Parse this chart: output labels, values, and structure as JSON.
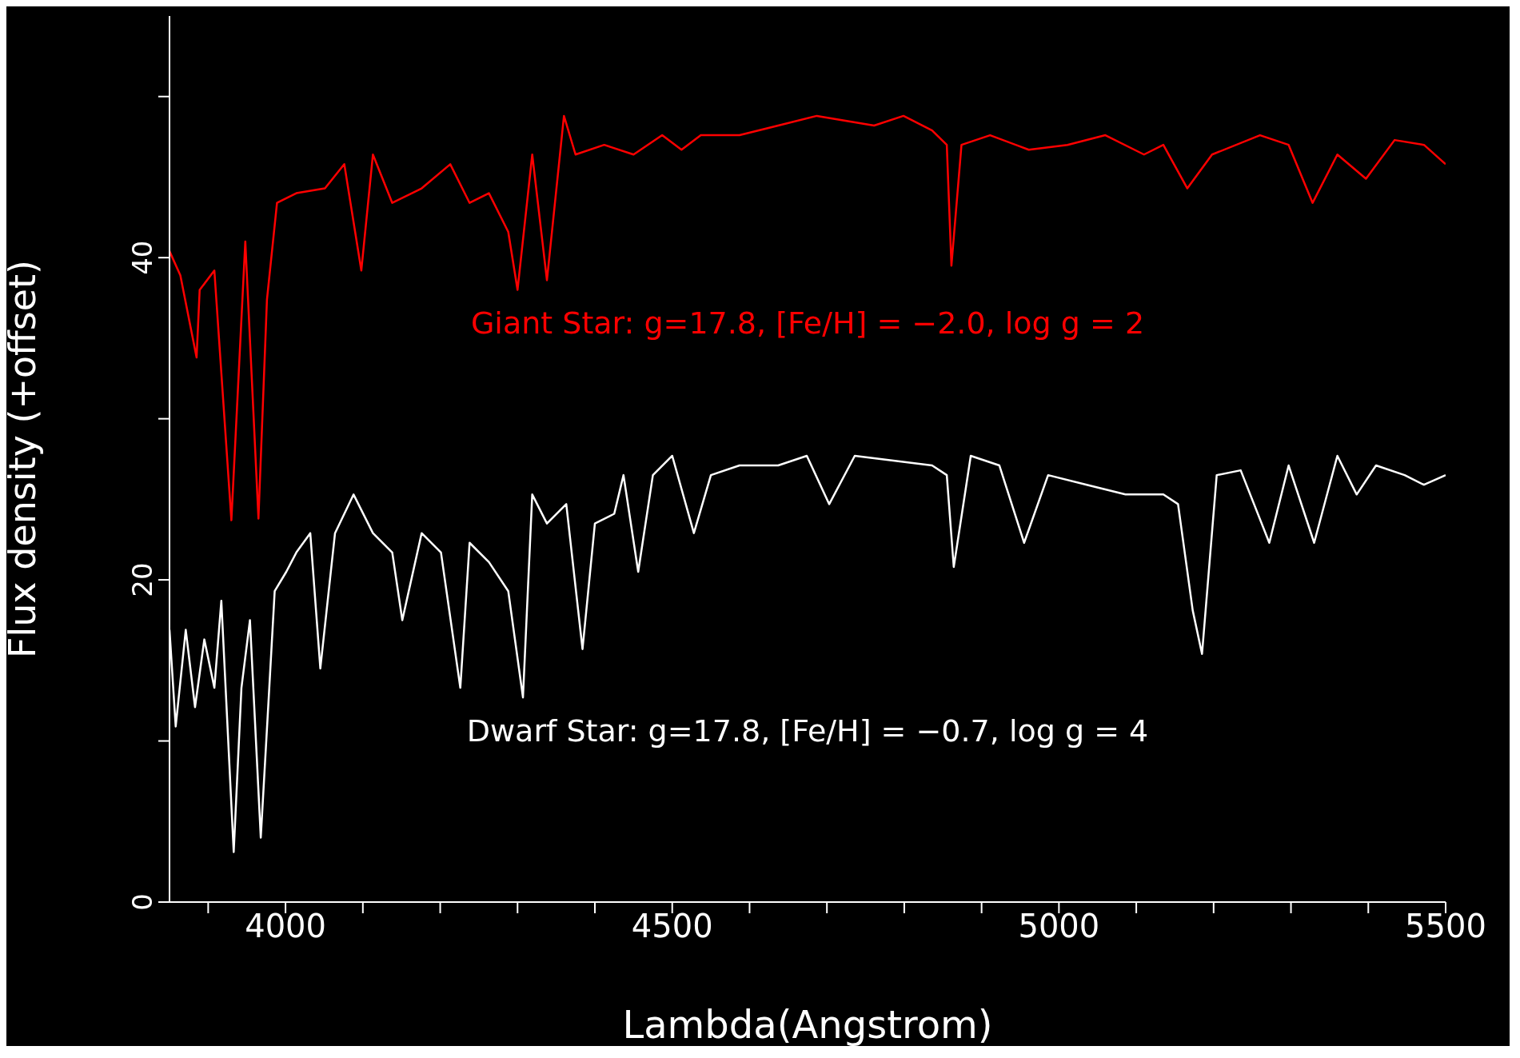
{
  "chart_data": {
    "type": "line",
    "xlabel": "Lambda(Angstrom)",
    "ylabel": "Flux density (+offset)",
    "xlim": [
      3850,
      5500
    ],
    "ylim": [
      0,
      55
    ],
    "xticks": [
      {
        "value": 3900,
        "label": null
      },
      4000,
      {
        "value": 4100,
        "label": null
      },
      {
        "value": 4200,
        "label": null
      },
      {
        "value": 4300,
        "label": null
      },
      {
        "value": 4400,
        "label": null
      },
      4500,
      {
        "value": 4600,
        "label": null
      },
      {
        "value": 4700,
        "label": null
      },
      {
        "value": 4800,
        "label": null
      },
      {
        "value": 4900,
        "label": null
      },
      5000,
      {
        "value": 5100,
        "label": null
      },
      {
        "value": 5200,
        "label": null
      },
      {
        "value": 5300,
        "label": null
      },
      {
        "value": 5400,
        "label": null
      },
      5500
    ],
    "yticks": [
      0,
      {
        "value": 10,
        "label": null
      },
      20,
      {
        "value": 30,
        "label": null
      },
      40,
      {
        "value": 50,
        "label": null
      }
    ],
    "marker": "none",
    "line_style": "solid",
    "series": [
      {
        "name": "Giant Star: g=17.8, [Fe/H] = −2.0, log g = 2",
        "color": "#ff0000",
        "x": [
          3850,
          3864,
          3885,
          3889,
          3908,
          3930,
          3948,
          3965,
          3976,
          3989,
          4014,
          4051,
          4076,
          4098,
          4113,
          4138,
          4176,
          4213,
          4238,
          4263,
          4288,
          4300,
          4319,
          4338,
          4360,
          4375,
          4412,
          4450,
          4487,
          4512,
          4537,
          4587,
          4637,
          4687,
          4724,
          4761,
          4799,
          4836,
          4855,
          4861,
          4874,
          4911,
          4961,
          5011,
          5060,
          5110,
          5135,
          5166,
          5198,
          5260,
          5297,
          5328,
          5360,
          5397,
          5434,
          5472,
          5500
        ],
        "values": [
          40.4,
          38.9,
          33.8,
          38.0,
          39.2,
          23.7,
          41.0,
          23.8,
          37.4,
          43.4,
          44.0,
          44.3,
          45.8,
          39.2,
          46.4,
          43.4,
          44.3,
          45.8,
          43.4,
          44.0,
          41.6,
          38.0,
          46.4,
          38.6,
          48.8,
          46.4,
          47.0,
          46.4,
          47.6,
          46.7,
          47.6,
          47.6,
          48.2,
          48.8,
          48.5,
          48.2,
          48.8,
          47.9,
          47.0,
          39.5,
          47.0,
          47.6,
          46.7,
          47.0,
          47.6,
          46.4,
          47.0,
          44.3,
          46.4,
          47.6,
          47.0,
          43.4,
          46.4,
          44.9,
          47.3,
          47.0,
          45.8
        ]
      },
      {
        "name": "Dwarf Star: g=17.8, [Fe/H] = −0.7, log g = 4",
        "color": "#ffffff",
        "x": [
          3850,
          3858,
          3871,
          3883,
          3895,
          3908,
          3917,
          3933,
          3943,
          3954,
          3968,
          3979,
          3986,
          4001,
          4014,
          4032,
          4045,
          4064,
          4088,
          4113,
          4138,
          4151,
          4176,
          4201,
          4226,
          4238,
          4263,
          4288,
          4307,
          4319,
          4338,
          4363,
          4384,
          4400,
          4425,
          4437,
          4456,
          4475,
          4500,
          4528,
          4550,
          4587,
          4637,
          4674,
          4703,
          4736,
          4786,
          4836,
          4855,
          4864,
          4886,
          4923,
          4955,
          4986,
          5036,
          5086,
          5135,
          5154,
          5173,
          5185,
          5204,
          5235,
          5272,
          5297,
          5330,
          5360,
          5385,
          5410,
          5447,
          5472,
          5500
        ],
        "values": [
          16.9,
          10.9,
          16.9,
          12.1,
          16.3,
          13.3,
          18.7,
          3.1,
          13.3,
          17.5,
          4.0,
          13.3,
          19.3,
          20.5,
          21.7,
          22.9,
          14.5,
          22.9,
          25.3,
          22.9,
          21.7,
          17.5,
          22.9,
          21.7,
          13.3,
          22.3,
          21.1,
          19.3,
          12.7,
          25.3,
          23.5,
          24.7,
          15.7,
          23.5,
          24.1,
          26.5,
          20.5,
          26.5,
          27.7,
          22.9,
          26.5,
          27.1,
          27.1,
          27.7,
          24.7,
          27.7,
          27.4,
          27.1,
          26.5,
          20.8,
          27.7,
          27.1,
          22.3,
          26.5,
          25.9,
          25.3,
          25.3,
          24.7,
          18.1,
          15.4,
          26.5,
          26.8,
          22.3,
          27.1,
          22.3,
          27.7,
          25.3,
          27.1,
          26.5,
          25.9,
          26.5
        ]
      }
    ]
  }
}
